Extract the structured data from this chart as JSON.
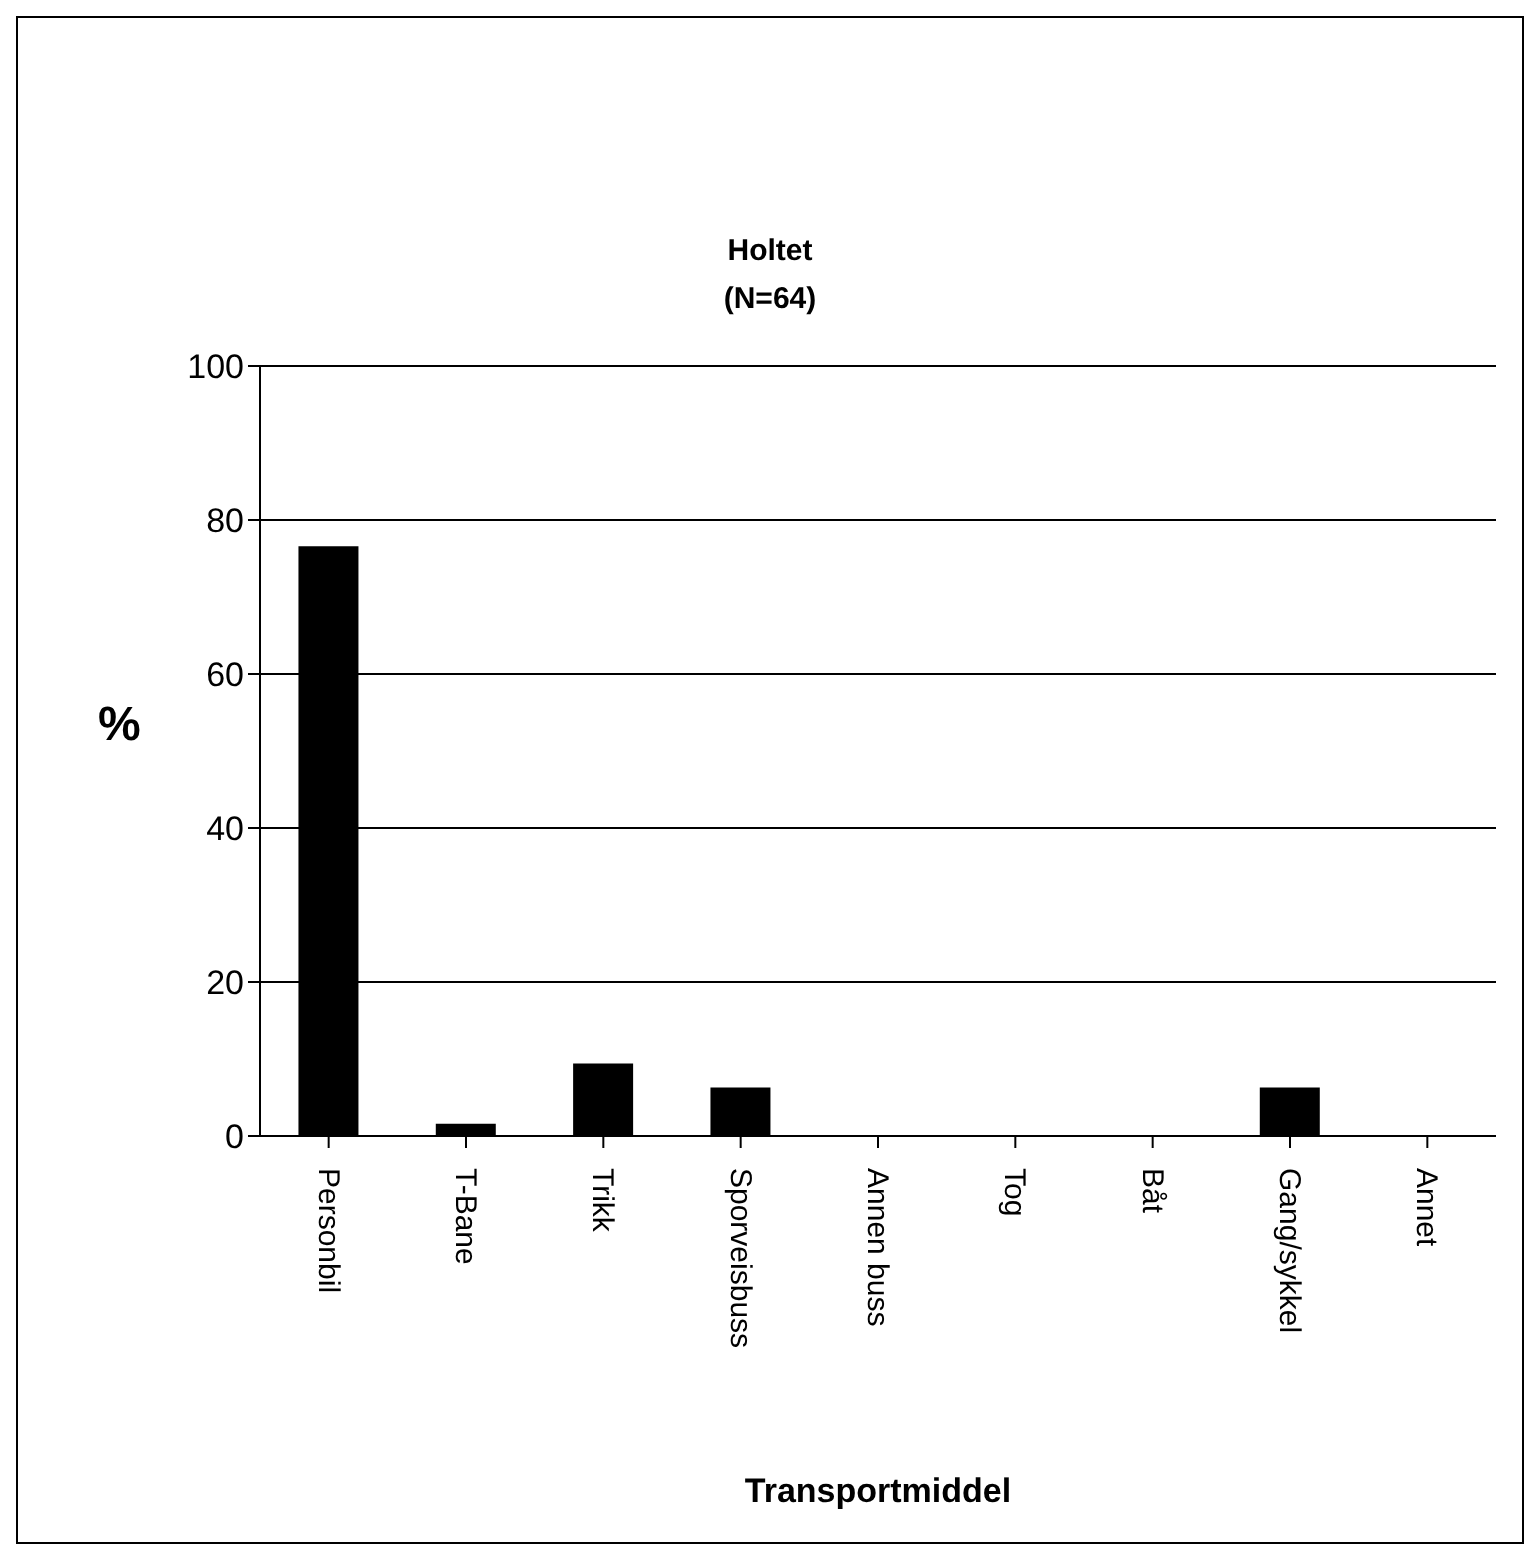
{
  "chart_data": {
    "type": "bar",
    "title": "Holtet",
    "subtitle": "(N=64)",
    "xlabel": "Transportmiddel",
    "ylabel": "%",
    "categories": [
      "Personbil",
      "T-Bane",
      "Trikk",
      "Sporveisbuss",
      "Annen buss",
      "Tog",
      "Båt",
      "Gang/sykkel",
      "Annet"
    ],
    "values": [
      76.6,
      1.6,
      9.4,
      6.3,
      0,
      0,
      0,
      6.3,
      0
    ],
    "color": "#000000",
    "ylim": [
      0,
      100
    ],
    "yticks": [
      0,
      20,
      40,
      60,
      80,
      100
    ],
    "grid": "y"
  }
}
